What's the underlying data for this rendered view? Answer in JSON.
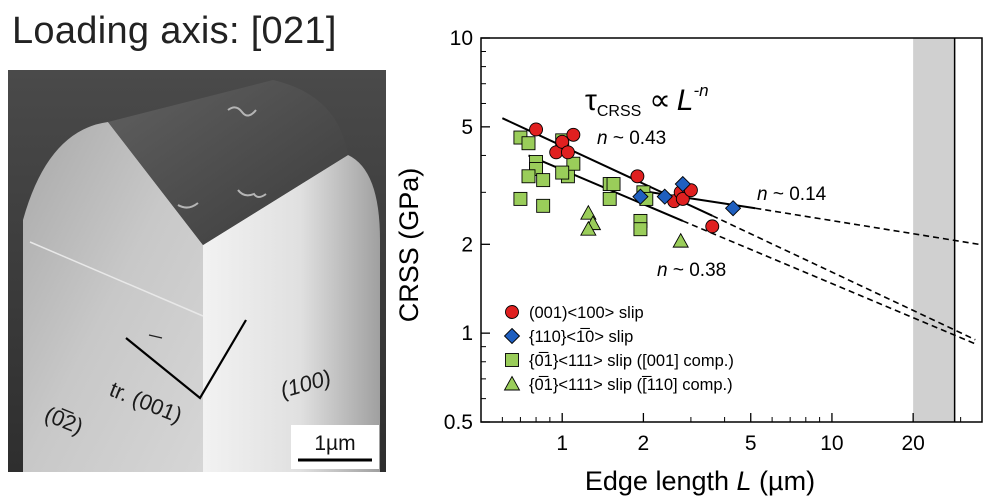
{
  "figure": {
    "title": "Loading axis: [021]",
    "micrograph": {
      "trace_label": "tr. (001)",
      "face_left": "(0̅2)",
      "face_right": "(100)",
      "scale_bar": "1µm"
    }
  },
  "chart_data": {
    "type": "scatter",
    "x_scale": "log",
    "y_scale": "log",
    "xlabel_prefix": "Edge length ",
    "xlabel_var": "L",
    "xlabel_suffix": " (µm)",
    "ylabel": "CRSS (GPa)",
    "xlim": [
      0.5,
      36
    ],
    "ylim": [
      0.5,
      10
    ],
    "x_ticks": [
      1,
      2,
      5,
      10,
      20
    ],
    "y_ticks": [
      0.5,
      1,
      2,
      5,
      10
    ],
    "x_tick_labels": [
      "1",
      "2",
      "5",
      "10",
      "20"
    ],
    "y_tick_labels": [
      "0.5",
      "1",
      "2",
      "5",
      "10"
    ],
    "equation": {
      "tau": "τ",
      "sub": "CRSS",
      "prop": "∝",
      "L": "L",
      "exp": "-n"
    },
    "shaded_region": {
      "x": [
        20,
        28.5
      ],
      "color": "#d0d0d0"
    },
    "vertical_line_x": 28.5,
    "series": [
      {
        "name": "(001)<100> slip",
        "marker": "circle",
        "color": "#e02020",
        "points": [
          [
            0.8,
            4.9
          ],
          [
            0.95,
            4.1
          ],
          [
            1.0,
            4.45
          ],
          [
            1.05,
            4.1
          ],
          [
            1.1,
            4.7
          ],
          [
            1.9,
            3.4
          ],
          [
            2.6,
            2.8
          ],
          [
            2.75,
            3.0
          ],
          [
            2.8,
            2.85
          ],
          [
            3.0,
            3.05
          ],
          [
            3.6,
            2.3
          ]
        ]
      },
      {
        "name": "{110}<1̅0> slip",
        "marker": "diamond",
        "color": "#1f5fbf",
        "points": [
          [
            1.95,
            2.9
          ],
          [
            2.4,
            2.9
          ],
          [
            2.8,
            3.2
          ],
          [
            4.3,
            2.65
          ]
        ]
      },
      {
        "name": "{0̅1}<111> slip ([001] comp.)",
        "marker": "square",
        "color": "#9acd5a",
        "points": [
          [
            0.7,
            4.6
          ],
          [
            0.75,
            4.4
          ],
          [
            0.8,
            3.8
          ],
          [
            0.8,
            3.6
          ],
          [
            0.85,
            3.3
          ],
          [
            0.75,
            3.4
          ],
          [
            0.7,
            2.85
          ],
          [
            0.85,
            2.7
          ],
          [
            1.0,
            4.5
          ],
          [
            1.05,
            3.4
          ],
          [
            1.1,
            3.75
          ],
          [
            1.0,
            3.5
          ],
          [
            1.5,
            3.2
          ],
          [
            1.55,
            3.2
          ],
          [
            1.5,
            2.85
          ],
          [
            2.0,
            3.0
          ],
          [
            2.05,
            2.85
          ],
          [
            1.95,
            2.4
          ],
          [
            1.95,
            2.25
          ]
        ]
      },
      {
        "name": "{0̅1}<111> slip ([̅110] comp.)",
        "marker": "triangle",
        "color": "#9acd5a",
        "points": [
          [
            1.25,
            2.55
          ],
          [
            1.3,
            2.35
          ],
          [
            1.25,
            2.25
          ],
          [
            2.75,
            2.05
          ]
        ]
      }
    ],
    "fit_lines": [
      {
        "label": "n ~ 0.43",
        "n": 0.43,
        "solid": [
          [
            0.6,
            5.35
          ],
          [
            3.6,
            2.5
          ]
        ],
        "dashed": [
          [
            3.6,
            2.5
          ],
          [
            34,
            0.95
          ]
        ]
      },
      {
        "label": "n ~ 0.38",
        "n": 0.38,
        "solid": [
          [
            0.75,
            4.0
          ],
          [
            2.8,
            2.4
          ]
        ],
        "dashed": [
          [
            2.8,
            2.4
          ],
          [
            34,
            0.92
          ]
        ]
      },
      {
        "label": "n ~ 0.14",
        "n": 0.14,
        "solid": [
          [
            1.9,
            3.05
          ],
          [
            5.2,
            2.65
          ]
        ],
        "dashed": [
          [
            5.2,
            2.65
          ],
          [
            35,
            2.0
          ]
        ]
      }
    ]
  }
}
